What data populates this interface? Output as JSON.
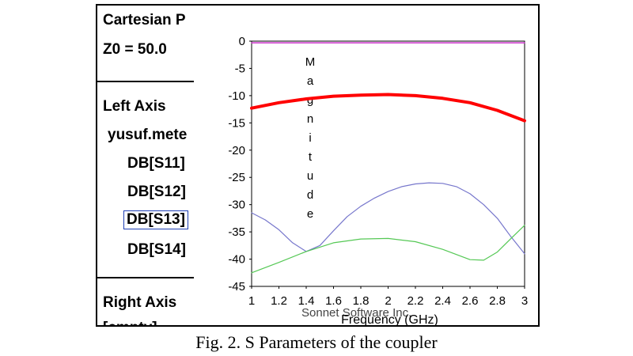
{
  "legend": {
    "header_line1": "Cartesian P",
    "header_line2": "Z0 = 50.0",
    "left_axis_title": "Left Axis",
    "project": "yusuf.mete",
    "traces": [
      "DB[S11]",
      "DB[S12]",
      "DB[S13]",
      "DB[S14]"
    ],
    "selected_trace": "DB[S13]",
    "right_axis_title": "Right Axis",
    "right_axis_value": "[empty]"
  },
  "watermark": "Sonnet Software Inc.",
  "caption": "Fig. 2. S Parameters of the coupler",
  "colors": {
    "s11": "#cc33cc",
    "s12": "#ff0000",
    "s13": "#7777cc",
    "s14": "#55c855"
  },
  "chart_data": {
    "type": "line",
    "title": "",
    "xlabel": "Frequency (GHz)",
    "ylabel": "Magnitude",
    "xlim": [
      1,
      3
    ],
    "ylim": [
      -45,
      0
    ],
    "xticks": [
      1,
      1.2,
      1.4,
      1.6,
      1.8,
      2,
      2.2,
      2.4,
      2.6,
      2.8,
      3
    ],
    "xtick_labels": [
      "1",
      "1.2",
      "1.4",
      "1.6",
      "1.8",
      "2",
      "2.2",
      "2.4",
      "2.6",
      "2.8",
      "3"
    ],
    "yticks": [
      0,
      -5,
      -10,
      -15,
      -20,
      -25,
      -30,
      -35,
      -40,
      -45
    ],
    "ytick_labels": [
      "0",
      "-5",
      "-10",
      "-15",
      "-20",
      "-25",
      "-30",
      "-35",
      "-40",
      "-45"
    ],
    "grid": false,
    "series": [
      {
        "name": "DB[S11]",
        "x": [
          1,
          1.2,
          1.4,
          1.6,
          1.8,
          2,
          2.2,
          2.4,
          2.6,
          2.8,
          3
        ],
        "y": [
          -0.3,
          -0.3,
          -0.3,
          -0.3,
          -0.3,
          -0.3,
          -0.3,
          -0.3,
          -0.3,
          -0.3,
          -0.3
        ]
      },
      {
        "name": "DB[S12]",
        "x": [
          1,
          1.2,
          1.4,
          1.6,
          1.8,
          2,
          2.2,
          2.4,
          2.6,
          2.8,
          3
        ],
        "y": [
          -12.3,
          -11.3,
          -10.6,
          -10.1,
          -9.9,
          -9.8,
          -10.0,
          -10.5,
          -11.3,
          -12.7,
          -14.6
        ]
      },
      {
        "name": "DB[S13]",
        "x": [
          1,
          1.1,
          1.2,
          1.3,
          1.4,
          1.5,
          1.6,
          1.7,
          1.8,
          1.9,
          2,
          2.1,
          2.2,
          2.3,
          2.4,
          2.5,
          2.6,
          2.7,
          2.8,
          2.9,
          3
        ],
        "y": [
          -31.5,
          -32.8,
          -34.6,
          -37.0,
          -38.6,
          -37.5,
          -34.8,
          -32.2,
          -30.3,
          -28.8,
          -27.6,
          -26.7,
          -26.2,
          -26.0,
          -26.1,
          -26.7,
          -28.0,
          -30.0,
          -32.5,
          -35.9,
          -39.0
        ]
      },
      {
        "name": "DB[S14]",
        "x": [
          1,
          1.2,
          1.4,
          1.6,
          1.8,
          2,
          2.2,
          2.4,
          2.6,
          2.7,
          2.8,
          2.9,
          3
        ],
        "y": [
          -42.5,
          -40.6,
          -38.6,
          -37.0,
          -36.3,
          -36.2,
          -36.8,
          -38.2,
          -40.1,
          -40.2,
          -38.7,
          -36.2,
          -33.8
        ]
      }
    ]
  }
}
